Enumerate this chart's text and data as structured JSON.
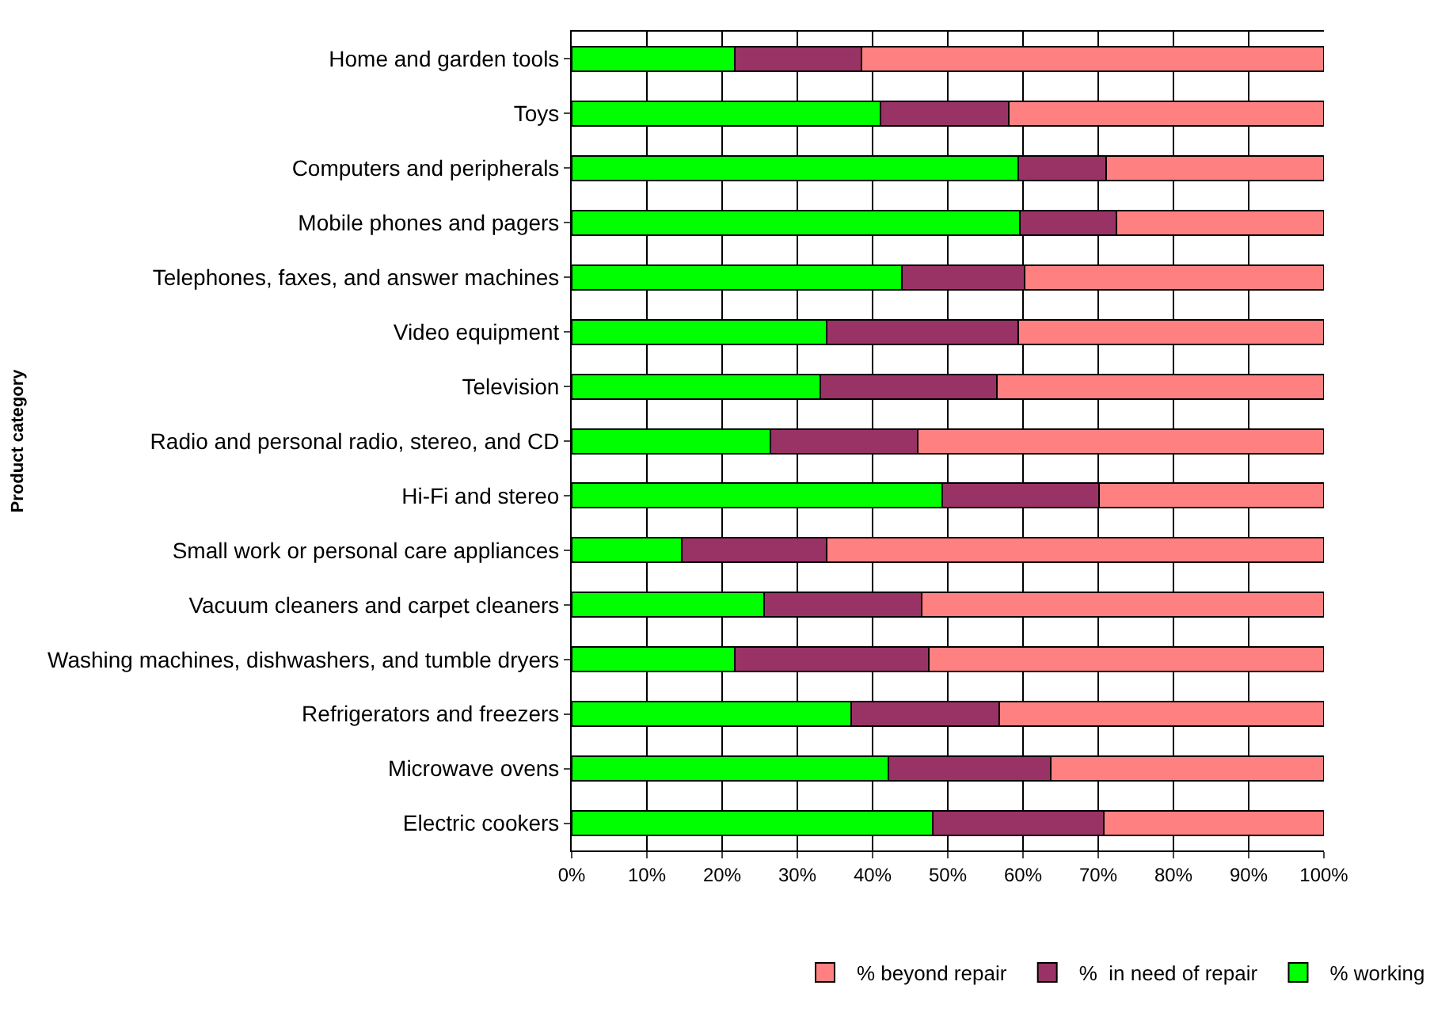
{
  "chart_data": {
    "type": "bar",
    "orientation": "horizontal",
    "stacked": true,
    "ylabel": "Product category",
    "categories": [
      "Home and garden tools",
      "Toys",
      "Computers and peripherals",
      "Mobile phones and pagers",
      "Telephones, faxes, and answer machines",
      "Video equipment",
      "Television",
      "Radio and personal radio, stereo, and CD",
      "Hi-Fi and stereo",
      "Small work or personal care appliances",
      "Vacuum cleaners and carpet cleaners",
      "Washing machines, dishwashers, and tumble dryers",
      "Refrigerators and freezers",
      "Microwave ovens",
      "Electric cookers"
    ],
    "series": [
      {
        "name": "% working",
        "color": "#00ff00",
        "values": [
          21.7,
          41.0,
          59.4,
          59.6,
          43.9,
          33.9,
          33.1,
          26.4,
          49.3,
          14.6,
          25.6,
          21.7,
          37.2,
          42.1,
          48.0
        ]
      },
      {
        "name": "%  in need of repair",
        "color": "#993366",
        "values": [
          16.8,
          17.1,
          11.6,
          12.8,
          16.3,
          25.5,
          23.4,
          19.6,
          20.8,
          19.3,
          20.9,
          25.8,
          19.6,
          21.6,
          22.7
        ]
      },
      {
        "name": "% beyond repair",
        "color": "#ff8080",
        "values": [
          61.5,
          41.9,
          29.0,
          27.6,
          39.8,
          40.6,
          43.5,
          54.0,
          29.9,
          66.1,
          53.5,
          52.5,
          43.2,
          36.3,
          29.3
        ]
      }
    ],
    "xlim": [
      0,
      100
    ],
    "xticks": [
      {
        "value": 0,
        "label": "0%"
      },
      {
        "value": 10,
        "label": "10%"
      },
      {
        "value": 20,
        "label": "20%"
      },
      {
        "value": 30,
        "label": "30%"
      },
      {
        "value": 40,
        "label": "40%"
      },
      {
        "value": 50,
        "label": "50%"
      },
      {
        "value": 60,
        "label": "60%"
      },
      {
        "value": 70,
        "label": "70%"
      },
      {
        "value": 80,
        "label": "80%"
      },
      {
        "value": 90,
        "label": "90%"
      },
      {
        "value": 100,
        "label": "100%"
      }
    ],
    "grid": "x",
    "legend": "bottom"
  }
}
